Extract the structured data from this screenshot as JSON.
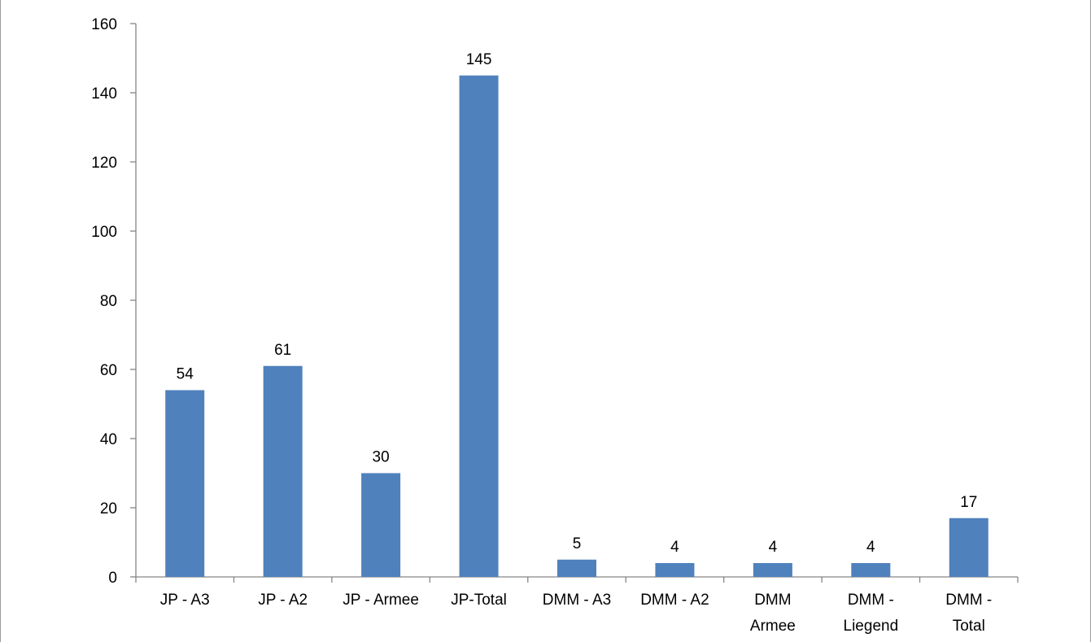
{
  "chart_data": {
    "type": "bar",
    "categories": [
      [
        "JP - A3"
      ],
      [
        "JP - A2"
      ],
      [
        "JP - Armee"
      ],
      [
        "JP-Total"
      ],
      [
        "DMM - A3"
      ],
      [
        "DMM - A2"
      ],
      [
        "DMM",
        "Armee"
      ],
      [
        "DMM -",
        "Liegend"
      ],
      [
        "DMM -",
        "Total"
      ]
    ],
    "values": [
      54,
      61,
      30,
      145,
      5,
      4,
      4,
      4,
      17
    ],
    "data_labels": [
      "54",
      "61",
      "30",
      "145",
      "5",
      "4",
      "4",
      "4",
      "17"
    ],
    "ylim": [
      0,
      160
    ],
    "yticks": [
      0,
      20,
      40,
      60,
      80,
      100,
      120,
      140,
      160
    ],
    "title": "",
    "xlabel": "",
    "ylabel": "",
    "grid": false,
    "legend": "none",
    "bar_color": "#4f81bd",
    "axis_color": "#868686"
  }
}
